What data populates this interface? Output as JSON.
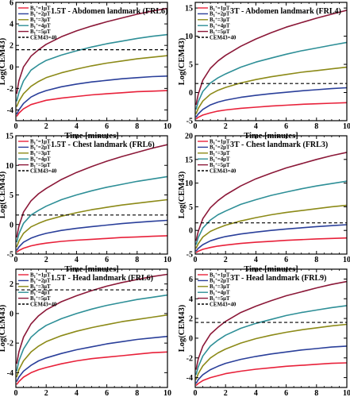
{
  "chart_data": [
    {
      "type": "line",
      "title": "1.5T - Abdomen landmark (FRL6)",
      "xlabel": "Time [minutes]",
      "ylabel": "Log(CEM43)",
      "xlim": [
        0,
        10
      ],
      "ylim": [
        -5,
        6
      ],
      "xticks": [
        0,
        2,
        4,
        6,
        8,
        10
      ],
      "yticks": [
        -4,
        -2,
        0,
        2,
        4,
        6
      ],
      "x": [
        0.05,
        0.2,
        0.5,
        1,
        1.5,
        2,
        3,
        4,
        5,
        6,
        7,
        8,
        9,
        10
      ],
      "series": [
        {
          "name": "B1+=1μT",
          "values": [
            -4.6,
            -4.3,
            -3.9,
            -3.5,
            -3.3,
            -3.1,
            -2.9,
            -2.75,
            -2.6,
            -2.5,
            -2.4,
            -2.3,
            -2.25,
            -2.2
          ]
        },
        {
          "name": "B1+=2μT",
          "values": [
            -4.4,
            -4.0,
            -3.4,
            -2.8,
            -2.45,
            -2.2,
            -1.85,
            -1.6,
            -1.4,
            -1.25,
            -1.1,
            -1.0,
            -0.9,
            -0.85
          ]
        },
        {
          "name": "B1+=3μT",
          "values": [
            -3.7,
            -3.2,
            -2.5,
            -1.8,
            -1.35,
            -1.0,
            -0.55,
            -0.2,
            0.1,
            0.35,
            0.55,
            0.75,
            0.9,
            1.05
          ]
        },
        {
          "name": "B1+=4μT",
          "values": [
            -3.2,
            -2.4,
            -1.3,
            -0.3,
            0.2,
            0.6,
            1.1,
            1.5,
            1.85,
            2.15,
            2.4,
            2.65,
            2.85,
            3.0
          ]
        },
        {
          "name": "B1+=5μT",
          "values": [
            -2.5,
            -1.3,
            0.0,
            1.0,
            1.6,
            2.1,
            2.8,
            3.35,
            3.8,
            4.2,
            4.55,
            4.9,
            5.2,
            5.45
          ]
        }
      ],
      "threshold": {
        "name": "CEM43=40",
        "y": 1.6
      },
      "legend": "top-left"
    },
    {
      "type": "line",
      "title": "3T - Abdomen landmark (FRL4)",
      "xlabel": "Time [minutes]",
      "ylabel": "Log(CEM43)",
      "xlim": [
        0,
        10
      ],
      "ylim": [
        -5,
        16
      ],
      "xticks": [
        0,
        2,
        4,
        6,
        8,
        10
      ],
      "yticks": [
        -5,
        0,
        5,
        10,
        15
      ],
      "x": [
        0.05,
        0.2,
        0.5,
        1,
        1.5,
        2,
        3,
        4,
        5,
        6,
        7,
        8,
        9,
        10
      ],
      "series": [
        {
          "name": "B1+=1μT",
          "values": [
            -4.7,
            -4.4,
            -4.0,
            -3.6,
            -3.3,
            -3.1,
            -2.8,
            -2.6,
            -2.4,
            -2.25,
            -2.1,
            -2.0,
            -1.9,
            -1.8
          ]
        },
        {
          "name": "B1+=2μT",
          "values": [
            -4.4,
            -3.8,
            -3.0,
            -2.2,
            -1.7,
            -1.35,
            -0.85,
            -0.5,
            -0.2,
            0.05,
            0.3,
            0.5,
            0.7,
            0.85
          ]
        },
        {
          "name": "B1+=3μT",
          "values": [
            -3.8,
            -2.8,
            -1.5,
            -0.3,
            0.4,
            0.9,
            1.7,
            2.3,
            2.8,
            3.2,
            3.6,
            3.9,
            4.2,
            4.5
          ]
        },
        {
          "name": "B1+=4μT",
          "values": [
            -3.0,
            -1.6,
            0.2,
            1.7,
            2.6,
            3.3,
            4.5,
            5.4,
            6.1,
            6.8,
            7.4,
            7.9,
            8.4,
            8.9
          ]
        },
        {
          "name": "B1+=5μT",
          "values": [
            -2.2,
            -0.3,
            2.2,
            4.3,
            5.6,
            6.6,
            8.2,
            9.5,
            10.6,
            11.6,
            12.4,
            13.2,
            13.9,
            14.6
          ]
        }
      ],
      "threshold": {
        "name": "CEM43=40",
        "y": 1.6
      },
      "legend": "top-left"
    },
    {
      "type": "line",
      "title": "1.5T - Chest landmark (FRL6)",
      "xlabel": "Time [minutes]",
      "ylabel": "Log(CEM43)",
      "xlim": [
        0,
        10
      ],
      "ylim": [
        -5,
        15
      ],
      "xticks": [
        0,
        2,
        4,
        6,
        8,
        10
      ],
      "yticks": [
        -5,
        0,
        5,
        10,
        15
      ],
      "x": [
        0.05,
        0.2,
        0.5,
        1,
        1.5,
        2,
        3,
        4,
        5,
        6,
        7,
        8,
        9,
        10
      ],
      "series": [
        {
          "name": "B1+=1μT",
          "values": [
            -4.7,
            -4.4,
            -4.0,
            -3.6,
            -3.35,
            -3.15,
            -2.85,
            -2.65,
            -2.5,
            -2.35,
            -2.2,
            -2.1,
            -2.0,
            -1.9
          ]
        },
        {
          "name": "B1+=2μT",
          "values": [
            -4.4,
            -3.8,
            -3.0,
            -2.3,
            -1.85,
            -1.5,
            -1.0,
            -0.65,
            -0.35,
            -0.1,
            0.15,
            0.35,
            0.55,
            0.7
          ]
        },
        {
          "name": "B1+=3μT",
          "values": [
            -3.8,
            -2.8,
            -1.5,
            -0.4,
            0.2,
            0.7,
            1.4,
            2.0,
            2.5,
            2.9,
            3.3,
            3.6,
            3.9,
            4.2
          ]
        },
        {
          "name": "B1+=4μT",
          "values": [
            -3.0,
            -1.6,
            0.2,
            1.6,
            2.4,
            3.1,
            4.2,
            5.0,
            5.7,
            6.3,
            6.8,
            7.3,
            7.7,
            8.1
          ]
        },
        {
          "name": "B1+=5μT",
          "values": [
            -2.2,
            -0.3,
            2.1,
            4.0,
            5.2,
            6.1,
            7.6,
            8.8,
            9.8,
            10.7,
            11.5,
            12.2,
            12.9,
            13.5
          ]
        }
      ],
      "threshold": {
        "name": "CEM43=40",
        "y": 1.6
      },
      "legend": "top-left"
    },
    {
      "type": "line",
      "title": "3T - Chest landmark (FRL3)",
      "xlabel": "Time [minutes]",
      "ylabel": "Log(CEM43)",
      "xlim": [
        0,
        10
      ],
      "ylim": [
        -5,
        20
      ],
      "xticks": [
        0,
        2,
        4,
        6,
        8,
        10
      ],
      "yticks": [
        -5,
        0,
        5,
        10,
        15,
        20
      ],
      "x": [
        0.05,
        0.2,
        0.5,
        1,
        1.5,
        2,
        3,
        4,
        5,
        6,
        7,
        8,
        9,
        10
      ],
      "series": [
        {
          "name": "B1+=1μT",
          "values": [
            -4.7,
            -4.4,
            -4.0,
            -3.6,
            -3.3,
            -3.1,
            -2.75,
            -2.5,
            -2.3,
            -2.1,
            -1.95,
            -1.8,
            -1.7,
            -1.6
          ]
        },
        {
          "name": "B1+=2μT",
          "values": [
            -4.4,
            -3.8,
            -3.0,
            -2.2,
            -1.7,
            -1.3,
            -0.75,
            -0.35,
            0.0,
            0.3,
            0.55,
            0.8,
            1.0,
            1.2
          ]
        },
        {
          "name": "B1+=3μT",
          "values": [
            -3.8,
            -2.8,
            -1.4,
            -0.2,
            0.5,
            1.1,
            2.0,
            2.7,
            3.3,
            3.8,
            4.2,
            4.6,
            5.0,
            5.3
          ]
        },
        {
          "name": "B1+=4μT",
          "values": [
            -3.0,
            -1.5,
            0.5,
            2.2,
            3.3,
            4.1,
            5.5,
            6.5,
            7.4,
            8.1,
            8.8,
            9.4,
            9.9,
            10.4
          ]
        },
        {
          "name": "B1+=5μT",
          "values": [
            -2.2,
            -0.2,
            2.5,
            4.8,
            6.3,
            7.5,
            9.4,
            10.9,
            12.1,
            13.2,
            14.1,
            15.0,
            15.8,
            16.5
          ]
        }
      ],
      "threshold": {
        "name": "CEM43=40",
        "y": 1.6
      },
      "legend": "top-left"
    },
    {
      "type": "line",
      "title": "1.5T - Head landmark (FRL6)",
      "xlabel": "Time [minutes]",
      "ylabel": "Log(CEM43)",
      "xlim": [
        0,
        10
      ],
      "ylim": [
        -5,
        3
      ],
      "xticks": [
        0,
        2,
        4,
        6,
        8,
        10
      ],
      "yticks": [
        -4,
        -2,
        0,
        2
      ],
      "x": [
        0.05,
        0.2,
        0.5,
        1,
        1.5,
        2,
        3,
        4,
        5,
        6,
        7,
        8,
        9,
        10
      ],
      "series": [
        {
          "name": "B1+=1μT",
          "values": [
            -4.8,
            -4.6,
            -4.3,
            -4.0,
            -3.8,
            -3.65,
            -3.4,
            -3.2,
            -3.05,
            -2.95,
            -2.85,
            -2.75,
            -2.65,
            -2.6
          ]
        },
        {
          "name": "B1+=2μT",
          "values": [
            -4.6,
            -4.3,
            -3.9,
            -3.5,
            -3.2,
            -3.0,
            -2.7,
            -2.45,
            -2.25,
            -2.05,
            -1.9,
            -1.75,
            -1.65,
            -1.55
          ]
        },
        {
          "name": "B1+=3μT",
          "values": [
            -4.3,
            -3.8,
            -3.2,
            -2.6,
            -2.2,
            -1.9,
            -1.5,
            -1.2,
            -0.95,
            -0.75,
            -0.55,
            -0.4,
            -0.25,
            -0.1
          ]
        },
        {
          "name": "B1+=4μT",
          "values": [
            -3.9,
            -3.2,
            -2.4,
            -1.6,
            -1.15,
            -0.8,
            -0.35,
            0.0,
            0.3,
            0.55,
            0.75,
            0.95,
            1.1,
            1.25
          ]
        },
        {
          "name": "B1+=5μT",
          "values": [
            -3.4,
            -2.6,
            -1.6,
            -0.7,
            -0.15,
            0.25,
            0.8,
            1.2,
            1.55,
            1.85,
            2.1,
            2.3,
            2.5,
            2.65
          ]
        }
      ],
      "threshold": {
        "name": "CEM43=40",
        "y": 1.6
      },
      "legend": "top-left"
    },
    {
      "type": "line",
      "title": "3T - Head landmark (FRL9)",
      "xlabel": "Time [minutes]",
      "ylabel": "Log(CEM43)",
      "xlim": [
        0,
        10
      ],
      "ylim": [
        -5,
        7
      ],
      "xticks": [
        0,
        2,
        4,
        6,
        8,
        10
      ],
      "yticks": [
        -4,
        -2,
        0,
        2,
        4,
        6
      ],
      "x": [
        0.05,
        0.2,
        0.5,
        1,
        1.5,
        2,
        3,
        4,
        5,
        6,
        7,
        8,
        9,
        10
      ],
      "series": [
        {
          "name": "B1+=1μT",
          "values": [
            -4.8,
            -4.6,
            -4.3,
            -4.0,
            -3.8,
            -3.6,
            -3.35,
            -3.15,
            -3.0,
            -2.85,
            -2.75,
            -2.65,
            -2.55,
            -2.5
          ]
        },
        {
          "name": "B1+=2μT",
          "values": [
            -4.6,
            -4.2,
            -3.7,
            -3.2,
            -2.85,
            -2.55,
            -2.15,
            -1.85,
            -1.6,
            -1.4,
            -1.2,
            -1.05,
            -0.9,
            -0.8
          ]
        },
        {
          "name": "B1+=3μT",
          "values": [
            -4.2,
            -3.6,
            -2.8,
            -2.0,
            -1.5,
            -1.1,
            -0.5,
            -0.05,
            0.3,
            0.6,
            0.85,
            1.05,
            1.25,
            1.4
          ]
        },
        {
          "name": "B1+=4μT",
          "values": [
            -3.7,
            -2.9,
            -1.8,
            -0.8,
            -0.2,
            0.3,
            1.0,
            1.5,
            1.9,
            2.3,
            2.6,
            2.85,
            3.1,
            3.3
          ]
        },
        {
          "name": "B1+=5μT",
          "values": [
            -3.2,
            -2.1,
            -0.8,
            0.4,
            1.1,
            1.7,
            2.6,
            3.25,
            3.8,
            4.3,
            4.7,
            5.1,
            5.45,
            5.75
          ]
        }
      ],
      "threshold": {
        "name": "CEM43=40",
        "y": 1.6
      },
      "legend": "top-left"
    }
  ],
  "colors": {
    "B1+=1μT": "#e8213a",
    "B1+=2μT": "#2a3f9a",
    "B1+=3μT": "#8c8a18",
    "B1+=4μT": "#2e8f97",
    "B1+=5μT": "#8b1838",
    "threshold": "#000000"
  },
  "legend_labels": [
    {
      "pre": "B",
      "sub": "1",
      "sup": "+",
      "post": "=1μT"
    },
    {
      "pre": "B",
      "sub": "1",
      "sup": "+",
      "post": "=2μT"
    },
    {
      "pre": "B",
      "sub": "1",
      "sup": "+",
      "post": "=3μT"
    },
    {
      "pre": "B",
      "sub": "1",
      "sup": "+",
      "post": "=4μT"
    },
    {
      "pre": "B",
      "sub": "1",
      "sup": "+",
      "post": "=5μT"
    },
    {
      "pre": "CEM43=40"
    }
  ]
}
